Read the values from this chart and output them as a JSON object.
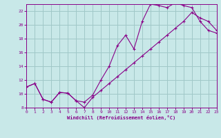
{
  "xlabel": "Windchill (Refroidissement éolien,°C)",
  "bg_color": "#c8e8e8",
  "grid_color": "#a0c8c8",
  "line_color": "#880088",
  "xlim": [
    0,
    23
  ],
  "ylim": [
    8,
    23
  ],
  "xticks": [
    0,
    1,
    2,
    3,
    4,
    5,
    6,
    7,
    8,
    9,
    10,
    11,
    12,
    13,
    14,
    15,
    16,
    17,
    18,
    19,
    20,
    21,
    22,
    23
  ],
  "yticks": [
    8,
    10,
    12,
    14,
    16,
    18,
    20,
    22
  ],
  "curve1_x": [
    0,
    1,
    2,
    3,
    4,
    5,
    6,
    7,
    8,
    9,
    10,
    11,
    12,
    13,
    14,
    15,
    16,
    17,
    18,
    19,
    20,
    21,
    22,
    23
  ],
  "curve1_y": [
    11.0,
    11.5,
    9.2,
    8.8,
    10.2,
    10.1,
    9.0,
    8.8,
    9.8,
    12.0,
    14.0,
    17.0,
    18.5,
    16.5,
    20.5,
    23.0,
    22.8,
    22.5,
    23.2,
    22.8,
    22.5,
    20.5,
    19.2,
    18.8
  ],
  "curve2_x": [
    0,
    1,
    2,
    3,
    4,
    5,
    6,
    7,
    8,
    9,
    10,
    11,
    12,
    13,
    14,
    15,
    16,
    17,
    18,
    19,
    20,
    21,
    22,
    23
  ],
  "curve2_y": [
    11.0,
    11.5,
    9.2,
    8.8,
    10.2,
    10.1,
    9.0,
    8.0,
    9.5,
    10.5,
    11.5,
    12.5,
    13.5,
    14.5,
    15.5,
    16.5,
    17.5,
    18.5,
    19.5,
    20.5,
    21.8,
    21.0,
    20.5,
    19.2
  ]
}
